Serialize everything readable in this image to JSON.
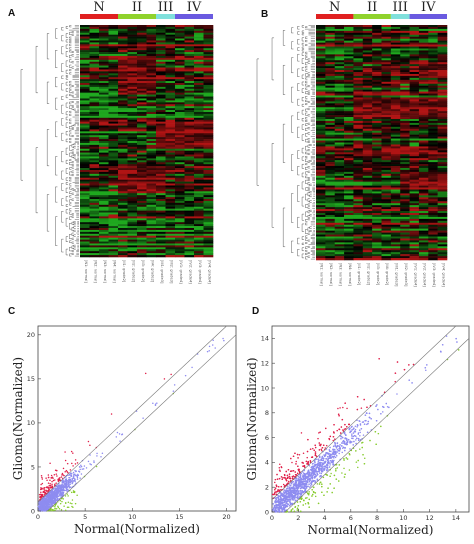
{
  "panels": {
    "A": {
      "letter": "A"
    },
    "B": {
      "letter": "B"
    },
    "C": {
      "letter": "C"
    },
    "D": {
      "letter": "D"
    }
  },
  "colors": {
    "N": "#e02020",
    "II": "#8fd22c",
    "III": "#7fe0dc",
    "IV": "#6a5ae0",
    "heat_low": "#1fa81f",
    "heat_high": "#b01414",
    "scatter_up": "#e0204a",
    "scatter_mid": "#8e8cf0",
    "scatter_down": "#88cc30"
  },
  "chart_data": [
    {
      "id": "A",
      "type": "heatmap",
      "groups": [
        {
          "name": "N",
          "columns": 4
        },
        {
          "name": "II",
          "columns": 4
        },
        {
          "name": "III",
          "columns": 2
        },
        {
          "name": "IV",
          "columns": 4
        }
      ],
      "columns": [
        "[N1: normal]",
        "[N2: normal]",
        "[N3: normal]",
        "[N4: normal]",
        "[II1: grade2]",
        "[II2: grade2]",
        "[II3: grade2]",
        "[II4: grade2]",
        "[III1: grade3]",
        "[III2: grade3]",
        "[IV1: grade4]",
        "[IV2: grade4]",
        "[IV3: grade4]",
        "[IV4: grade4]"
      ],
      "colorscale": [
        "green",
        "black",
        "red"
      ],
      "dendrogram": "left"
    },
    {
      "id": "B",
      "type": "heatmap",
      "groups": [
        {
          "name": "N",
          "columns": 4
        },
        {
          "name": "II",
          "columns": 4
        },
        {
          "name": "III",
          "columns": 2
        },
        {
          "name": "IV",
          "columns": 4
        }
      ],
      "columns": [
        "[N1: normal]",
        "[N2: normal]",
        "[N3: normal]",
        "[N4: normal]",
        "[II1: grade2]",
        "[II2: grade2]",
        "[II3: grade2]",
        "[II4: grade2]",
        "[III1: grade3]",
        "[III2: grade3]",
        "[IV1: grade4]",
        "[IV2: grade4]",
        "[IV3: grade4]",
        "[IV4: grade4]"
      ],
      "colorscale": [
        "green",
        "black",
        "red"
      ],
      "dendrogram": "left"
    },
    {
      "id": "C",
      "type": "scatter",
      "xlabel": "Normal(Normalized)",
      "ylabel": "Glioma(Normalized)",
      "xlim": [
        0,
        21
      ],
      "ylim": [
        0,
        21
      ],
      "xticks": [
        0,
        5,
        10,
        15,
        20
      ],
      "yticks": [
        0,
        5,
        10,
        15,
        20
      ],
      "guide_lines": [
        {
          "intercept": 1,
          "slope": 1
        },
        {
          "intercept": -1,
          "slope": 1
        }
      ]
    },
    {
      "id": "D",
      "type": "scatter",
      "xlabel": "Normal(Normalized)",
      "ylabel": "Glioma(Normalized)",
      "xlim": [
        0,
        15
      ],
      "ylim": [
        0,
        15
      ],
      "xticks": [
        0,
        2,
        4,
        6,
        8,
        10,
        12,
        14
      ],
      "yticks": [
        0,
        2,
        4,
        6,
        8,
        10,
        12,
        14
      ],
      "guide_lines": [
        {
          "intercept": 1,
          "slope": 1
        },
        {
          "intercept": -1,
          "slope": 1
        }
      ]
    }
  ]
}
